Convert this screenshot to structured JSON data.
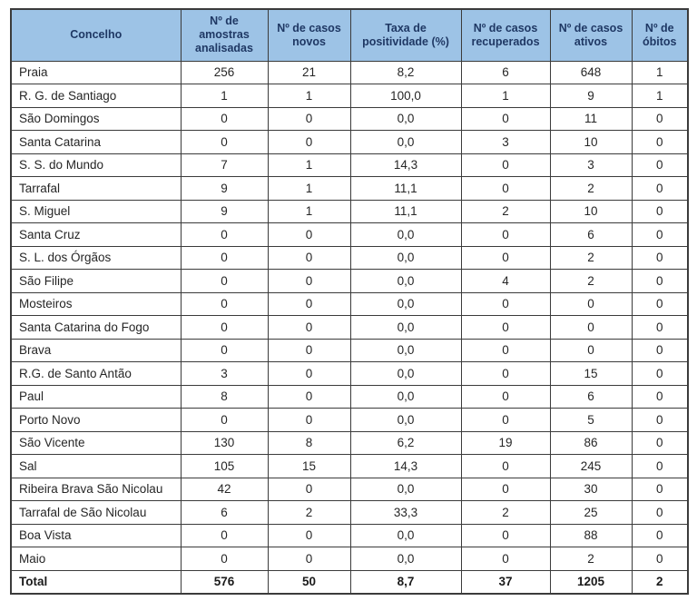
{
  "table": {
    "columns": [
      "Concelho",
      "Nº de amostras analisadas",
      "Nº de casos novos",
      "Taxa de positividade (%)",
      "Nº de casos recuperados",
      "Nº de casos ativos",
      "Nº de óbitos"
    ],
    "rows": [
      {
        "is_total": false,
        "cells": [
          "Praia",
          "256",
          "21",
          "8,2",
          "6",
          "648",
          "1"
        ]
      },
      {
        "is_total": false,
        "cells": [
          "R. G. de Santiago",
          "1",
          "1",
          "100,0",
          "1",
          "9",
          "1"
        ]
      },
      {
        "is_total": false,
        "cells": [
          "São Domingos",
          "0",
          "0",
          "0,0",
          "0",
          "11",
          "0"
        ]
      },
      {
        "is_total": false,
        "cells": [
          "Santa Catarina",
          "0",
          "0",
          "0,0",
          "3",
          "10",
          "0"
        ]
      },
      {
        "is_total": false,
        "cells": [
          "S. S. do Mundo",
          "7",
          "1",
          "14,3",
          "0",
          "3",
          "0"
        ]
      },
      {
        "is_total": false,
        "cells": [
          "Tarrafal",
          "9",
          "1",
          "11,1",
          "0",
          "2",
          "0"
        ]
      },
      {
        "is_total": false,
        "cells": [
          "S. Miguel",
          "9",
          "1",
          "11,1",
          "2",
          "10",
          "0"
        ]
      },
      {
        "is_total": false,
        "cells": [
          "Santa Cruz",
          "0",
          "0",
          "0,0",
          "0",
          "6",
          "0"
        ]
      },
      {
        "is_total": false,
        "cells": [
          "S. L. dos Órgãos",
          "0",
          "0",
          "0,0",
          "0",
          "2",
          "0"
        ]
      },
      {
        "is_total": false,
        "cells": [
          "São Filipe",
          "0",
          "0",
          "0,0",
          "4",
          "2",
          "0"
        ]
      },
      {
        "is_total": false,
        "cells": [
          "Mosteiros",
          "0",
          "0",
          "0,0",
          "0",
          "0",
          "0"
        ]
      },
      {
        "is_total": false,
        "cells": [
          "Santa Catarina do Fogo",
          "0",
          "0",
          "0,0",
          "0",
          "0",
          "0"
        ]
      },
      {
        "is_total": false,
        "cells": [
          "Brava",
          "0",
          "0",
          "0,0",
          "0",
          "0",
          "0"
        ]
      },
      {
        "is_total": false,
        "cells": [
          "R.G. de Santo Antão",
          "3",
          "0",
          "0,0",
          "0",
          "15",
          "0"
        ]
      },
      {
        "is_total": false,
        "cells": [
          "Paul",
          "8",
          "0",
          "0,0",
          "0",
          "6",
          "0"
        ]
      },
      {
        "is_total": false,
        "cells": [
          "Porto Novo",
          "0",
          "0",
          "0,0",
          "0",
          "5",
          "0"
        ]
      },
      {
        "is_total": false,
        "cells": [
          "São Vicente",
          "130",
          "8",
          "6,2",
          "19",
          "86",
          "0"
        ]
      },
      {
        "is_total": false,
        "cells": [
          "Sal",
          "105",
          "15",
          "14,3",
          "0",
          "245",
          "0"
        ]
      },
      {
        "is_total": false,
        "cells": [
          "Ribeira Brava São Nicolau",
          "42",
          "0",
          "0,0",
          "0",
          "30",
          "0"
        ]
      },
      {
        "is_total": false,
        "cells": [
          "Tarrafal de São Nicolau",
          "6",
          "2",
          "33,3",
          "2",
          "25",
          "0"
        ]
      },
      {
        "is_total": false,
        "cells": [
          "Boa Vista",
          "0",
          "0",
          "0,0",
          "0",
          "88",
          "0"
        ]
      },
      {
        "is_total": false,
        "cells": [
          "Maio",
          "0",
          "0",
          "0,0",
          "0",
          "2",
          "0"
        ]
      },
      {
        "is_total": true,
        "cells": [
          "Total",
          "576",
          "50",
          "8,7",
          "37",
          "1205",
          "2"
        ]
      }
    ],
    "colors": {
      "header_bg": "#9DC3E6",
      "header_text": "#1F3864",
      "border": "#3b3b3b"
    }
  }
}
